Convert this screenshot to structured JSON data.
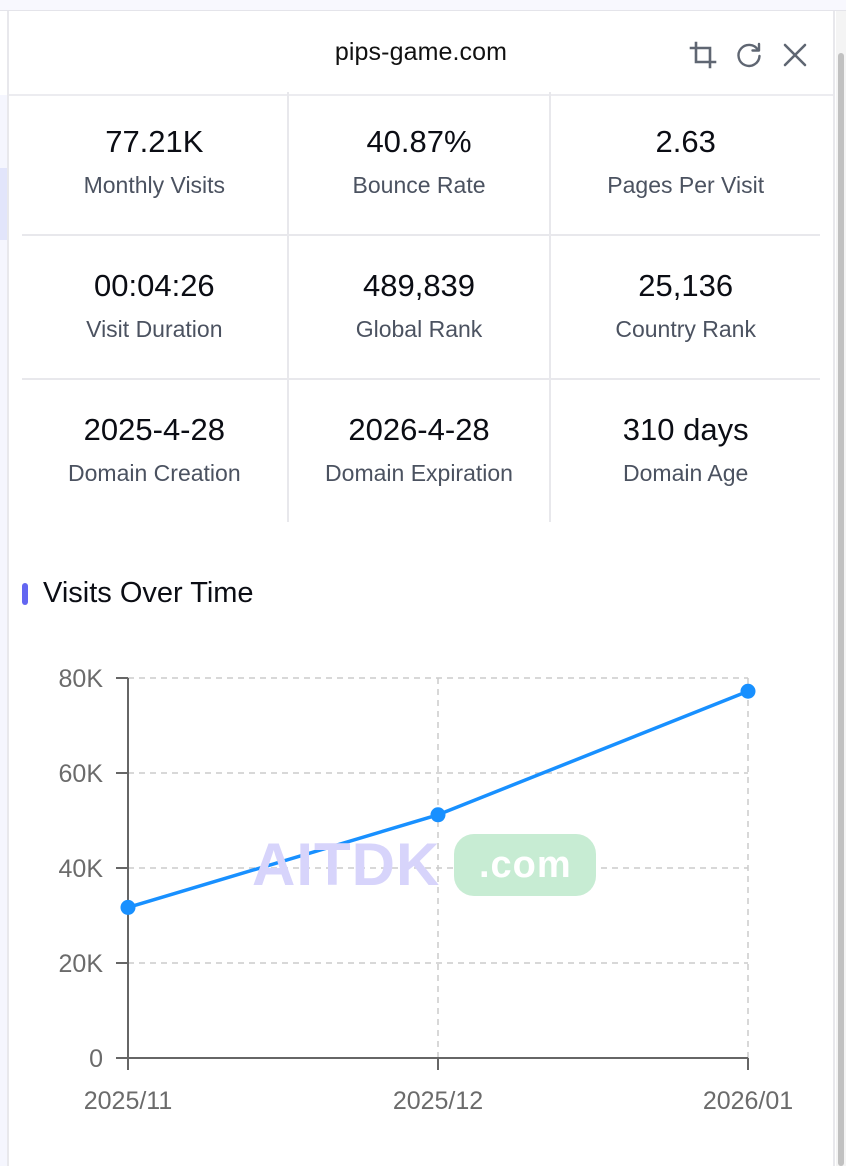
{
  "header": {
    "title": "pips-game.com",
    "icons": [
      "crop-icon",
      "refresh-icon",
      "close-icon"
    ]
  },
  "stats": [
    [
      {
        "value": "77.21K",
        "label": "Monthly Visits"
      },
      {
        "value": "40.87%",
        "label": "Bounce Rate"
      },
      {
        "value": "2.63",
        "label": "Pages Per Visit"
      }
    ],
    [
      {
        "value": "00:04:26",
        "label": "Visit Duration"
      },
      {
        "value": "489,839",
        "label": "Global Rank"
      },
      {
        "value": "25,136",
        "label": "Country Rank"
      }
    ],
    [
      {
        "value": "2025-4-28",
        "label": "Domain Creation"
      },
      {
        "value": "2026-4-28",
        "label": "Domain Expiration"
      },
      {
        "value": "310 days",
        "label": "Domain Age"
      }
    ]
  ],
  "section": {
    "title": "Visits Over Time",
    "accent_color": "#6366f1"
  },
  "watermark": {
    "brand": "AITDK",
    "tld": ".com"
  },
  "colors": {
    "line": "#1890ff",
    "axis": "#666666",
    "grid": "#cccccc"
  },
  "chart_data": {
    "type": "line",
    "title": "Visits Over Time",
    "xlabel": "",
    "ylabel": "",
    "categories": [
      "2025/11",
      "2025/12",
      "2026/01"
    ],
    "values": [
      31700,
      51200,
      77210
    ],
    "y_ticks": [
      "0",
      "20K",
      "40K",
      "60K",
      "80K"
    ],
    "ylim": [
      0,
      80000
    ],
    "grid": true,
    "legend": null
  }
}
